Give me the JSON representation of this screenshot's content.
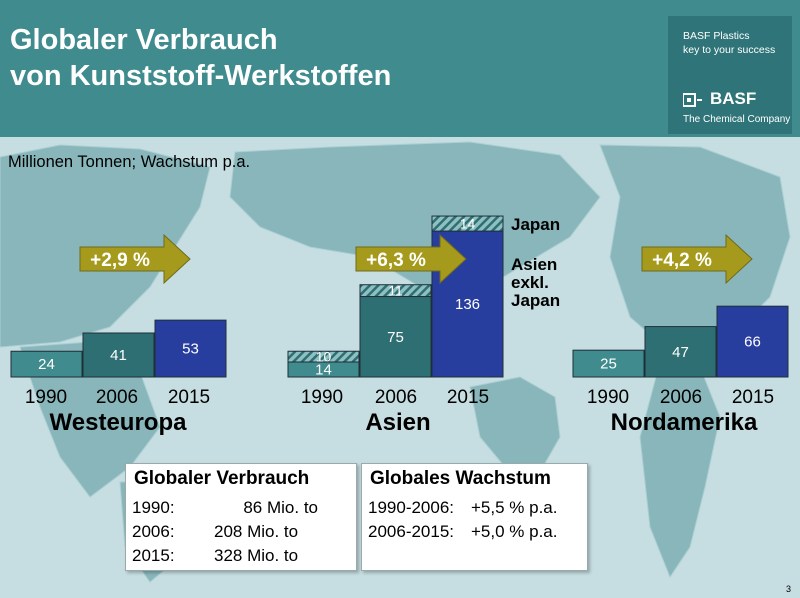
{
  "header": {
    "title_line1": "Globaler Verbrauch",
    "title_line2": "von Kunststoff-Werkstoffen",
    "brand_line1": "BASF Plastics",
    "brand_line2": "key to your success",
    "logo_text": "BASF",
    "logo_tagline": "The Chemical Company"
  },
  "subtitle": "Millionen Tonnen; Wachstum p.a.",
  "colors": {
    "header_bg": "#3f8b8e",
    "bar_1990": "#3f8b8e",
    "bar_2006": "#2e6f73",
    "bar_2015": "#283e9e",
    "japan_segment": "#8fbfc0",
    "growth_arrow": "#a59a1b",
    "map_land": "#89b6bb",
    "map_ocean": "#c6dde1"
  },
  "chart_data": {
    "type": "bar",
    "stacked": true,
    "unit": "Millionen Tonnen",
    "years": [
      "1990",
      "2006",
      "2015"
    ],
    "regions": [
      {
        "name": "Westeuropa",
        "growth": "+2,9 %",
        "bars": [
          {
            "year": "1990",
            "segments": [
              {
                "value": 24,
                "label": "24"
              }
            ]
          },
          {
            "year": "2006",
            "segments": [
              {
                "value": 41,
                "label": "41"
              }
            ]
          },
          {
            "year": "2015",
            "segments": [
              {
                "value": 53,
                "label": "53"
              }
            ]
          }
        ]
      },
      {
        "name": "Asien",
        "growth": "+6,3 %",
        "bars": [
          {
            "year": "1990",
            "segments": [
              {
                "series": "Asien exkl. Japan",
                "value": 14,
                "label": "14"
              },
              {
                "series": "Japan",
                "value": 10,
                "label": "10"
              }
            ]
          },
          {
            "year": "2006",
            "segments": [
              {
                "series": "Asien exkl. Japan",
                "value": 75,
                "label": "75"
              },
              {
                "series": "Japan",
                "value": 11,
                "label": "11"
              }
            ]
          },
          {
            "year": "2015",
            "segments": [
              {
                "series": "Asien exkl. Japan",
                "value": 136,
                "label": "136"
              },
              {
                "series": "Japan",
                "value": 14,
                "label": "14"
              }
            ]
          }
        ],
        "legend": [
          {
            "name": "Japan",
            "lines": [
              "Japan"
            ]
          },
          {
            "name": "Asien exkl. Japan",
            "lines": [
              "Asien",
              "exkl.",
              "Japan"
            ]
          }
        ]
      },
      {
        "name": "Nordamerika",
        "growth": "+4,2 %",
        "bars": [
          {
            "year": "1990",
            "segments": [
              {
                "value": 25,
                "label": "25"
              }
            ]
          },
          {
            "year": "2006",
            "segments": [
              {
                "value": 47,
                "label": "47"
              }
            ]
          },
          {
            "year": "2015",
            "segments": [
              {
                "value": 66,
                "label": "66"
              }
            ]
          }
        ]
      }
    ]
  },
  "consumption_box": {
    "title": "Globaler Verbrauch",
    "rows": [
      {
        "label": "1990:",
        "value": "86 Mio. to"
      },
      {
        "label": "2006:",
        "value": "208 Mio. to"
      },
      {
        "label": "2015:",
        "value": "328 Mio. to"
      }
    ]
  },
  "growth_box": {
    "title": "Globales Wachstum",
    "rows": [
      {
        "label": "1990-2006:",
        "value": "+5,5 % p.a."
      },
      {
        "label": "2006-2015:",
        "value": "+5,0 % p.a."
      }
    ]
  },
  "page_number": "3"
}
